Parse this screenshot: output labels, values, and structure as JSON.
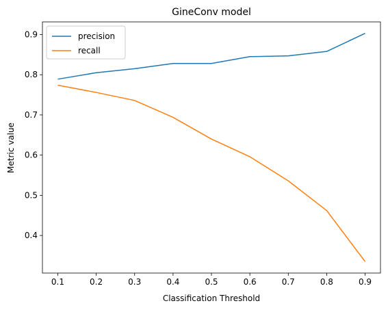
{
  "chart_data": {
    "type": "line",
    "title": "GineConv model",
    "xlabel": "Classification Threshold",
    "ylabel": "Metric value",
    "x": [
      0.1,
      0.2,
      0.3,
      0.4,
      0.5,
      0.6,
      0.7,
      0.8,
      0.9
    ],
    "x_ticks": [
      "0.1",
      "0.2",
      "0.3",
      "0.4",
      "0.5",
      "0.6",
      "0.7",
      "0.8",
      "0.9"
    ],
    "y_ticks": [
      "0.4",
      "0.5",
      "0.6",
      "0.7",
      "0.8",
      "0.9"
    ],
    "xlim": [
      0.06,
      0.94
    ],
    "ylim": [
      0.3065,
      0.9315
    ],
    "legend_position": "top-left",
    "grid": false,
    "series": [
      {
        "name": "precision",
        "color": "#1f77b4",
        "values": [
          0.789,
          0.805,
          0.815,
          0.828,
          0.828,
          0.845,
          0.847,
          0.858,
          0.903
        ]
      },
      {
        "name": "recall",
        "color": "#ff7f0e",
        "values": [
          0.774,
          0.756,
          0.736,
          0.694,
          0.64,
          0.596,
          0.536,
          0.462,
          0.335
        ]
      }
    ]
  }
}
